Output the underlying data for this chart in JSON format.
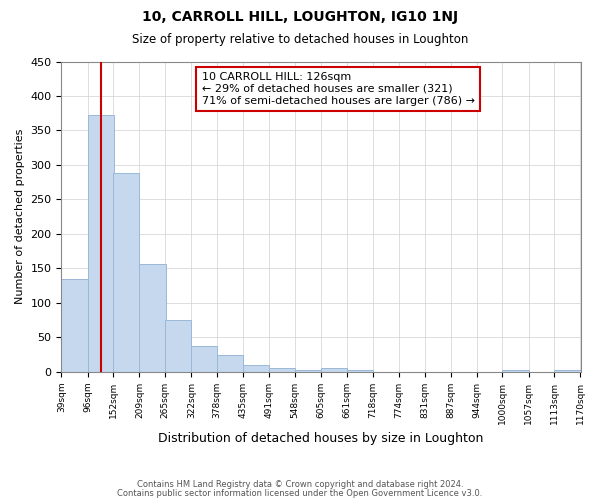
{
  "title": "10, CARROLL HILL, LOUGHTON, IG10 1NJ",
  "subtitle": "Size of property relative to detached houses in Loughton",
  "xlabel": "Distribution of detached houses by size in Loughton",
  "ylabel": "Number of detached properties",
  "bar_left_edges": [
    39,
    96,
    152,
    209,
    265,
    322,
    378,
    435,
    491,
    548,
    605,
    661,
    718,
    774,
    831,
    887,
    944,
    1000,
    1057,
    1113
  ],
  "bar_heights": [
    135,
    372,
    288,
    157,
    75,
    38,
    25,
    10,
    5,
    2,
    5,
    2,
    0,
    0,
    0,
    0,
    0,
    2,
    0,
    2
  ],
  "bin_width": 57,
  "bar_color": "#c5d8ee",
  "bar_edgecolor": "#9ab8d8",
  "tick_labels": [
    "39sqm",
    "96sqm",
    "152sqm",
    "209sqm",
    "265sqm",
    "322sqm",
    "378sqm",
    "435sqm",
    "491sqm",
    "548sqm",
    "605sqm",
    "661sqm",
    "718sqm",
    "774sqm",
    "831sqm",
    "887sqm",
    "944sqm",
    "1000sqm",
    "1057sqm",
    "1113sqm",
    "1170sqm"
  ],
  "ylim": [
    0,
    450
  ],
  "yticks": [
    0,
    50,
    100,
    150,
    200,
    250,
    300,
    350,
    400,
    450
  ],
  "property_line_x": 126,
  "property_line_color": "#cc0000",
  "annotation_title": "10 CARROLL HILL: 126sqm",
  "annotation_line1": "← 29% of detached houses are smaller (321)",
  "annotation_line2": "71% of semi-detached houses are larger (786) →",
  "annotation_box_color": "#cc0000",
  "footnote1": "Contains HM Land Registry data © Crown copyright and database right 2024.",
  "footnote2": "Contains public sector information licensed under the Open Government Licence v3.0.",
  "bg_color": "#ffffff",
  "grid_color": "#d0d0d0"
}
